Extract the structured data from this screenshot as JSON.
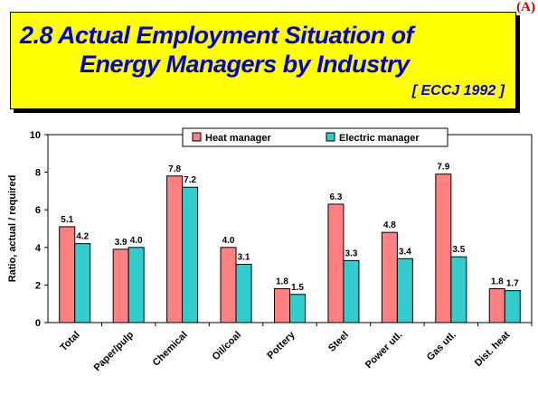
{
  "corner_mark": "(A)",
  "banner": {
    "title_line1": "2.8    Actual Employment Situation of",
    "title_line2": "Energy Managers by Industry",
    "source": "[ ECCJ 1992 ]",
    "background": "#ffff00",
    "text_color": "#0000cc"
  },
  "chart_data": {
    "type": "bar",
    "title": "",
    "xlabel": "",
    "ylabel": "Ratio, actual / required",
    "ylim": [
      0,
      10
    ],
    "yticks": [
      0,
      2,
      4,
      6,
      8,
      10
    ],
    "grid": false,
    "legend": "top-center",
    "categories": [
      "Total",
      "Paper/pulp",
      "Chemical",
      "Oil/coal",
      "Pottery",
      "Steel",
      "Power utl.",
      "Gas utl.",
      "Dist. heat"
    ],
    "series": [
      {
        "name": "Heat manager",
        "color": "#ff8080",
        "values": [
          5.1,
          3.9,
          7.8,
          4.0,
          1.8,
          6.3,
          4.8,
          7.9,
          1.8
        ]
      },
      {
        "name": "Electric manager",
        "color": "#33cccc",
        "values": [
          4.2,
          4.0,
          7.2,
          3.1,
          1.5,
          3.3,
          3.4,
          3.5,
          1.7
        ]
      }
    ]
  }
}
